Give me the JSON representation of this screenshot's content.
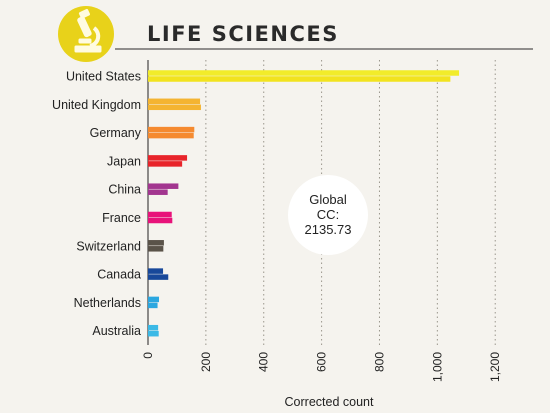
{
  "header": {
    "title": "LIFE SCIENCES",
    "icon": "microscope-icon",
    "icon_bg": "#e8d21a"
  },
  "badge": {
    "lines": [
      "Global",
      "CC:",
      "2135.73"
    ]
  },
  "chart_data": {
    "type": "bar",
    "orientation": "horizontal",
    "categories": [
      "United States",
      "United Kingdom",
      "Germany",
      "Japan",
      "China",
      "France",
      "Switzerland",
      "Canada",
      "Netherlands",
      "Australia"
    ],
    "series": [
      {
        "values": [
          1075,
          180,
          160,
          135,
          105,
          82,
          55,
          52,
          38,
          35
        ]
      },
      {
        "values": [
          1045,
          183,
          158,
          118,
          68,
          84,
          53,
          70,
          33,
          37
        ]
      }
    ],
    "colors": [
      [
        "#f2ec2a",
        "#f2e31e"
      ],
      [
        "#f4b431",
        "#f4b431"
      ],
      [
        "#f58a2f",
        "#f58a2f"
      ],
      [
        "#e8242a",
        "#e8242a"
      ],
      [
        "#a2358f",
        "#a2358f"
      ],
      [
        "#e8127a",
        "#e8127a"
      ],
      [
        "#5a5349",
        "#5a5349"
      ],
      [
        "#18489a",
        "#18489a"
      ],
      [
        "#2ba7e0",
        "#2ba7e0"
      ],
      [
        "#3bb9e6",
        "#3bb9e6"
      ]
    ],
    "xticks": [
      0,
      200,
      400,
      600,
      800,
      "1,000",
      "1,200"
    ],
    "xlim": [
      0,
      1220
    ],
    "xlabel": "Corrected count",
    "grid": true
  }
}
